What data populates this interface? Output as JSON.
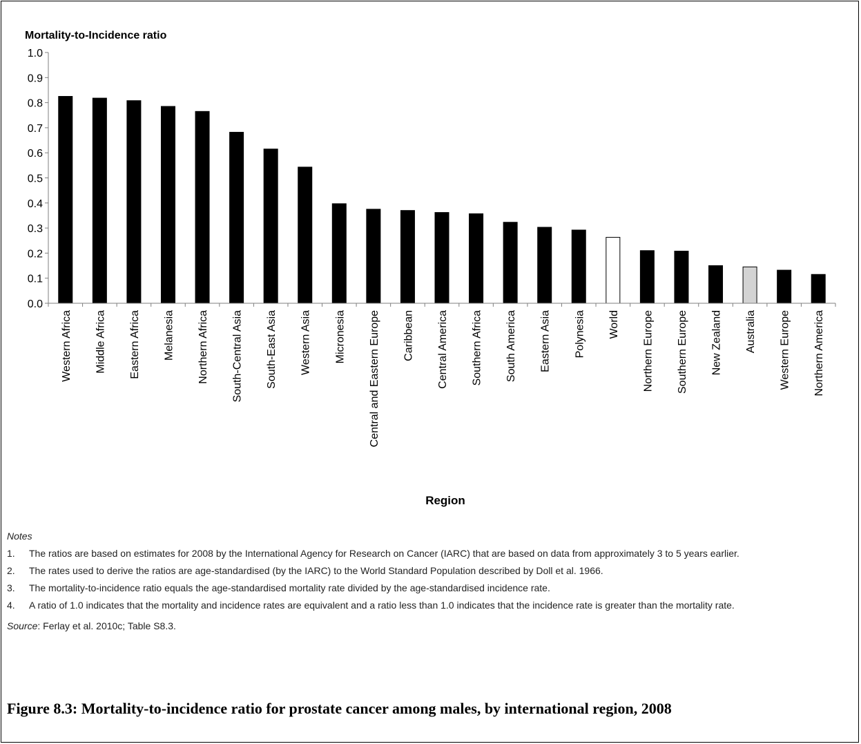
{
  "chart_data": {
    "type": "bar",
    "ylabel": "Mortality-to-Incidence ratio",
    "xlabel": "Region",
    "ylim": [
      0,
      1.0
    ],
    "yticks": [
      "0.0",
      "0.1",
      "0.2",
      "0.3",
      "0.4",
      "0.5",
      "0.6",
      "0.7",
      "0.8",
      "0.9",
      "1.0"
    ],
    "grid": false,
    "categories": [
      "Western Africa",
      "Middle Africa",
      "Eastern Africa",
      "Melanesia",
      "Northern Africa",
      "South-Central Asia",
      "South-East Asia",
      "Western Asia",
      "Micronesia",
      "Central and Eastern Europe",
      "Caribbean",
      "Central America",
      "Southern Africa",
      "South America",
      "Eastern Asia",
      "Polynesia",
      "World",
      "Northern Europe",
      "Southern Europe",
      "New Zealand",
      "Australia",
      "Western Europe",
      "Northern America"
    ],
    "values": [
      0.825,
      0.818,
      0.808,
      0.785,
      0.765,
      0.682,
      0.615,
      0.543,
      0.397,
      0.375,
      0.37,
      0.362,
      0.357,
      0.323,
      0.303,
      0.292,
      0.263,
      0.21,
      0.208,
      0.15,
      0.145,
      0.132,
      0.115
    ],
    "bar_fill": [
      "#000000",
      "#000000",
      "#000000",
      "#000000",
      "#000000",
      "#000000",
      "#000000",
      "#000000",
      "#000000",
      "#000000",
      "#000000",
      "#000000",
      "#000000",
      "#000000",
      "#000000",
      "#000000",
      "#ffffff",
      "#000000",
      "#000000",
      "#000000",
      "#d3d3d3",
      "#000000",
      "#000000"
    ]
  },
  "notes": {
    "heading": "Notes",
    "items": [
      {
        "num": "1.",
        "text": "The ratios are based on estimates for 2008 by the International Agency for Research on Cancer (IARC) that are based on data from approximately 3 to 5 years earlier."
      },
      {
        "num": "2.",
        "text": "The rates used to derive the ratios are age-standardised (by the IARC) to the World Standard Population described by Doll et al. 1966."
      },
      {
        "num": "3.",
        "text": "The mortality-to-incidence ratio equals the age-standardised mortality rate divided by the age-standardised incidence rate."
      },
      {
        "num": "4.",
        "text": "A ratio of 1.0 indicates that the mortality and incidence rates are equivalent and a ratio less than 1.0 indicates that the incidence rate is greater than the mortality rate."
      }
    ]
  },
  "source": {
    "label": "Source",
    "text": ": Ferlay et al. 2010c; Table S8.3."
  },
  "caption": "Figure 8.3: Mortality-to-incidence ratio for prostate cancer among males, by international region, 2008"
}
